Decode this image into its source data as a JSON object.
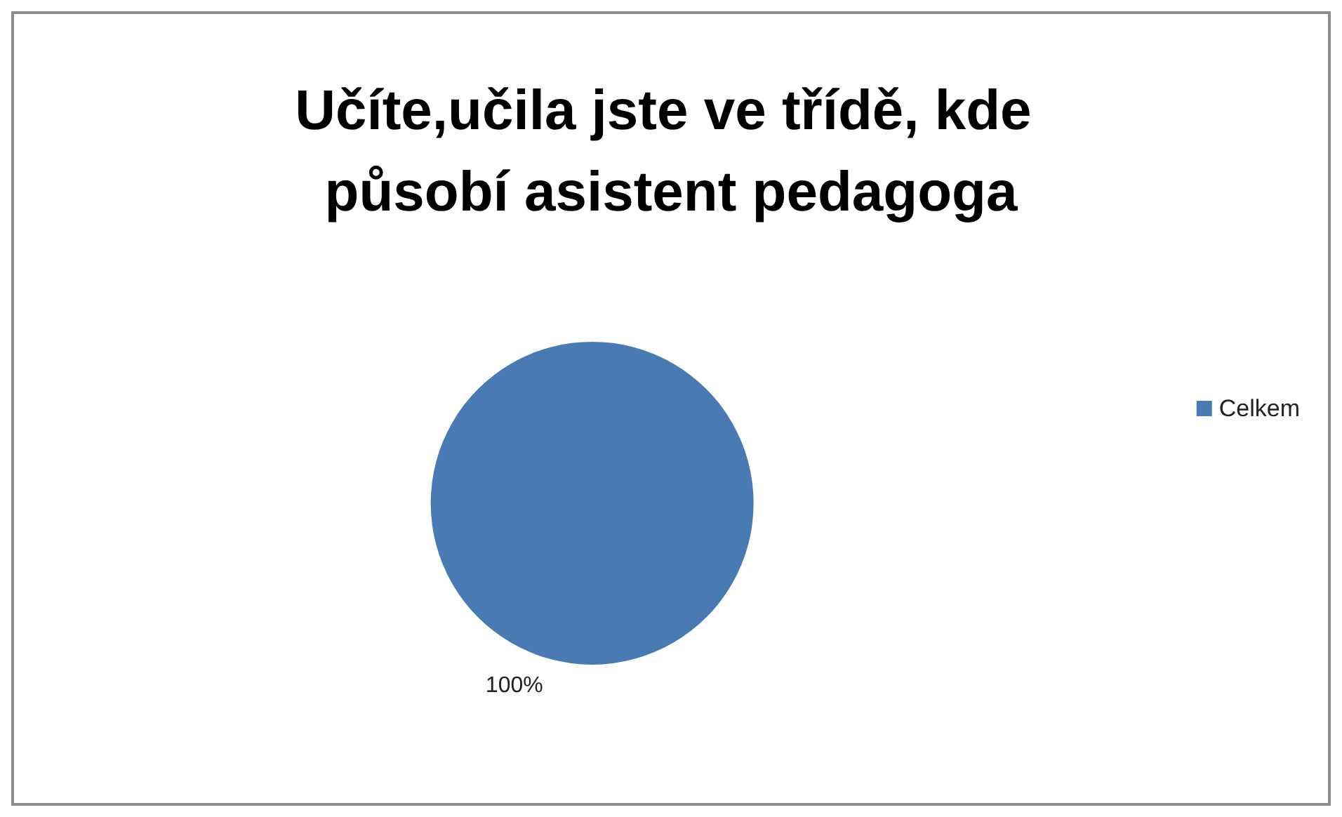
{
  "chart_data": {
    "type": "pie",
    "title": "Učíte,učila jste ve třídě, kde působí asistent pedagoga",
    "categories": [
      "Celkem"
    ],
    "values": [
      100
    ],
    "colors": [
      "#4a7ab4"
    ],
    "value_labels": [
      "100%"
    ],
    "legend": "right"
  }
}
